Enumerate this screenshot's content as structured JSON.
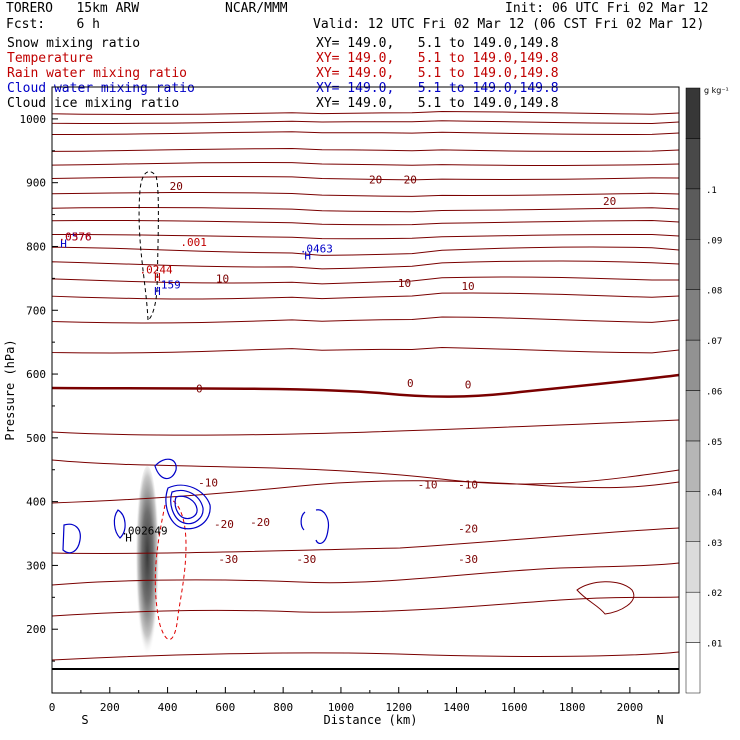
{
  "header": {
    "model": "TORERO   15km ARW",
    "org": "NCAR/MMM",
    "init": "Init: 06 UTC Fri 02 Mar 12",
    "fcst": "Fcst:    6 h",
    "valid": "Valid: 12 UTC Fri 02 Mar 12 (06 CST Fri 02 Mar 12)"
  },
  "legend": [
    {
      "name": "Snow mixing ratio",
      "xy": "XY= 149.0,   5.1 to 149.0,149.8",
      "color": "#000000"
    },
    {
      "name": "Temperature",
      "xy": "XY= 149.0,   5.1 to 149.0,149.8",
      "color": "#c00000"
    },
    {
      "name": "Rain water mixing ratio",
      "xy": "XY= 149.0,   5.1 to 149.0,149.8",
      "color": "#c00000"
    },
    {
      "name": "Cloud water mixing ratio",
      "xy": "XY= 149.0,   5.1 to 149.0,149.8",
      "color": "#0000c8"
    },
    {
      "name": "Cloud ice mixing ratio",
      "xy": "XY= 149.0,   5.1 to 149.0,149.8",
      "color": "#000000"
    }
  ],
  "colorbar": {
    "unit": "g kg⁻¹",
    "labels": [
      ".01",
      ".02",
      ".03",
      ".04",
      ".05",
      ".06",
      ".07",
      ".08",
      ".09",
      ".1"
    ]
  },
  "chart_data": {
    "type": "contour cross-section",
    "xlabel": "Distance (km)",
    "ylabel": "Pressure (hPa)",
    "xlim": [
      0,
      2170
    ],
    "ylim": [
      1050,
      100
    ],
    "x_ticks": [
      0,
      200,
      400,
      600,
      800,
      1000,
      1200,
      1400,
      1600,
      1800,
      2000
    ],
    "y_ticks": [
      200,
      300,
      400,
      500,
      600,
      700,
      800,
      900,
      1000
    ],
    "left_end": "S",
    "right_end": "N",
    "temperature_contour_labels": [
      {
        "x": 610,
        "p": 310,
        "text": "-30"
      },
      {
        "x": 880,
        "p": 310,
        "text": "-30"
      },
      {
        "x": 1440,
        "p": 310,
        "text": "-30"
      },
      {
        "x": 595,
        "p": 365,
        "text": "-20"
      },
      {
        "x": 720,
        "p": 368,
        "text": "-20"
      },
      {
        "x": 1440,
        "p": 358,
        "text": "-20"
      },
      {
        "x": 540,
        "p": 430,
        "text": "-10"
      },
      {
        "x": 1300,
        "p": 427,
        "text": "-10"
      },
      {
        "x": 1440,
        "p": 427,
        "text": "-10"
      },
      {
        "x": 510,
        "p": 577,
        "text": "0"
      },
      {
        "x": 1240,
        "p": 586,
        "text": "0"
      },
      {
        "x": 1440,
        "p": 584,
        "text": "0"
      },
      {
        "x": 590,
        "p": 750,
        "text": "10"
      },
      {
        "x": 1220,
        "p": 743,
        "text": "10"
      },
      {
        "x": 1440,
        "p": 738,
        "text": "10"
      },
      {
        "x": 430,
        "p": 895,
        "text": "20"
      },
      {
        "x": 1120,
        "p": 905,
        "text": "20"
      },
      {
        "x": 1240,
        "p": 905,
        "text": "20"
      },
      {
        "x": 1930,
        "p": 871,
        "text": "20"
      }
    ],
    "extrema_labels": [
      {
        "x": 265,
        "p": 344,
        "text": "H",
        "color": "#000000"
      },
      {
        "x": 320,
        "p": 355,
        "text": ".002649",
        "color": "#000000"
      },
      {
        "x": 40,
        "p": 805,
        "text": "H",
        "color": "#0000c8"
      },
      {
        "x": 80,
        "p": 816,
        "text": ".0576",
        "color": "#0000c8"
      },
      {
        "x": 80,
        "p": 816,
        "text": ".0376",
        "color": "#c00000"
      },
      {
        "x": 365,
        "p": 752,
        "text": "H",
        "color": "#c00000"
      },
      {
        "x": 360,
        "p": 764,
        "text": ".0244",
        "color": "#c00000"
      },
      {
        "x": 365,
        "p": 730,
        "text": "H",
        "color": "#0000c8"
      },
      {
        "x": 400,
        "p": 740,
        "text": ".159",
        "color": "#0000c8"
      },
      {
        "x": 490,
        "p": 807,
        "text": ".001",
        "color": "#c00000"
      },
      {
        "x": 885,
        "p": 786,
        "text": "H",
        "color": "#0000c8"
      },
      {
        "x": 915,
        "p": 797,
        "text": ".0463",
        "color": "#0000c8"
      }
    ],
    "snow_max": {
      "x": 330,
      "p": 330,
      "value": 0.002649
    }
  }
}
